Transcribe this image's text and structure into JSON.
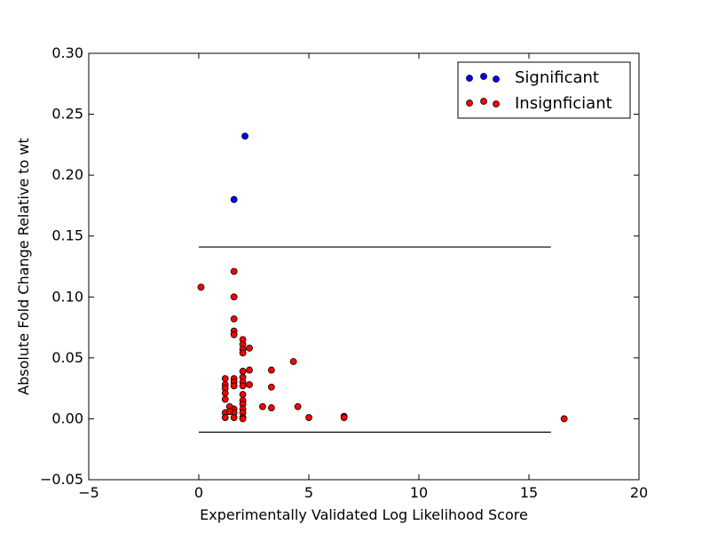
{
  "chart_data": {
    "type": "scatter",
    "title": "",
    "xlabel": "Experimentally Validated Log Likelihood Score",
    "ylabel": "Absolute Fold Change Relative to wt",
    "xlim": [
      -5,
      20
    ],
    "ylim": [
      -0.05,
      0.3
    ],
    "xticks": [
      -5,
      0,
      5,
      10,
      15,
      20
    ],
    "yticks": [
      -0.05,
      0.0,
      0.05,
      0.1,
      0.15,
      0.2,
      0.25,
      0.3
    ],
    "xtick_labels": [
      "−5",
      "0",
      "5",
      "10",
      "15",
      "20"
    ],
    "ytick_labels": [
      "−0.05",
      "0.00",
      "0.05",
      "0.10",
      "0.15",
      "0.20",
      "0.25",
      "0.30"
    ],
    "grid": false,
    "legend_position": "top-right",
    "threshold_lines": [
      {
        "y": 0.141,
        "x_start": 0,
        "x_end": 16
      },
      {
        "y": -0.011,
        "x_start": 0,
        "x_end": 16
      }
    ],
    "series": [
      {
        "name": "Significant",
        "color": "#0000ff",
        "points": [
          [
            2.1,
            0.232
          ],
          [
            1.6,
            0.18
          ]
        ]
      },
      {
        "name": "Insignficiant",
        "color": "#ff0000",
        "points": [
          [
            0.1,
            0.108
          ],
          [
            1.6,
            0.121
          ],
          [
            1.6,
            0.1
          ],
          [
            1.6,
            0.082
          ],
          [
            1.6,
            0.072
          ],
          [
            1.6,
            0.069
          ],
          [
            2.0,
            0.065
          ],
          [
            2.0,
            0.061
          ],
          [
            2.0,
            0.057
          ],
          [
            2.0,
            0.054
          ],
          [
            2.3,
            0.058
          ],
          [
            1.2,
            0.033
          ],
          [
            1.2,
            0.028
          ],
          [
            1.2,
            0.025
          ],
          [
            1.2,
            0.021
          ],
          [
            1.2,
            0.016
          ],
          [
            1.2,
            0.005
          ],
          [
            1.2,
            0.001
          ],
          [
            1.6,
            0.033
          ],
          [
            1.6,
            0.03
          ],
          [
            1.6,
            0.027
          ],
          [
            1.6,
            0.008
          ],
          [
            1.6,
            0.005
          ],
          [
            1.6,
            0.001
          ],
          [
            1.4,
            0.01
          ],
          [
            1.4,
            0.006
          ],
          [
            2.0,
            0.039
          ],
          [
            2.0,
            0.034
          ],
          [
            2.0,
            0.03
          ],
          [
            2.0,
            0.027
          ],
          [
            2.0,
            0.02
          ],
          [
            2.0,
            0.015
          ],
          [
            2.0,
            0.012
          ],
          [
            2.0,
            0.008
          ],
          [
            2.0,
            0.005
          ],
          [
            2.0,
            0.001
          ],
          [
            2.0,
            0.0
          ],
          [
            2.3,
            0.04
          ],
          [
            2.3,
            0.028
          ],
          [
            2.9,
            0.01
          ],
          [
            3.3,
            0.04
          ],
          [
            3.3,
            0.026
          ],
          [
            3.3,
            0.009
          ],
          [
            4.3,
            0.047
          ],
          [
            4.5,
            0.01
          ],
          [
            5.0,
            0.001
          ],
          [
            6.6,
            0.002
          ],
          [
            6.6,
            0.001
          ],
          [
            16.6,
            0.0
          ]
        ]
      }
    ]
  }
}
